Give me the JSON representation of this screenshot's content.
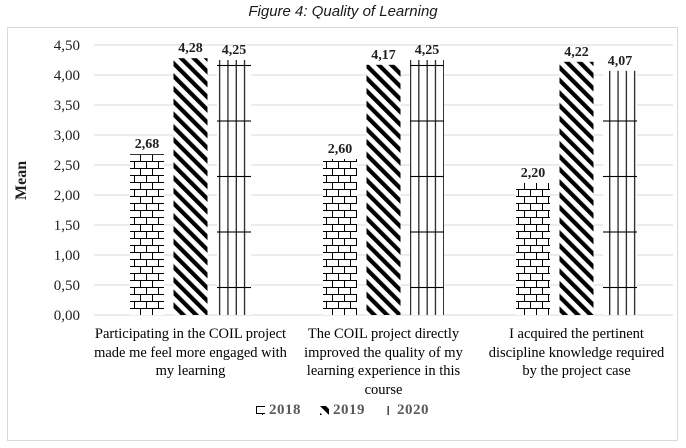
{
  "title": "Figure 4: Quality of Learning",
  "chart_data": {
    "type": "bar",
    "title": "Figure 4: Quality of Learning",
    "xlabel": "",
    "ylabel": "Mean",
    "ylim": [
      0,
      4.5
    ],
    "ytick_interval": 0.5,
    "decimal_separator": ",",
    "grid": true,
    "legend_position": "bottom",
    "categories": [
      "Participating in the COIL project made me feel more engaged with my learning",
      "The COIL project directly improved the quality of my learning experience in this course",
      "I acquired the pertinent discipline knowledge required by the project case"
    ],
    "series": [
      {
        "name": "2018",
        "pattern": "brick",
        "values": [
          2.68,
          2.6,
          2.2
        ],
        "value_labels": [
          "2,68",
          "2,60",
          "2,20"
        ]
      },
      {
        "name": "2019",
        "pattern": "wide-downward-diagonal",
        "values": [
          4.28,
          4.17,
          4.22
        ],
        "value_labels": [
          "4,28",
          "4,17",
          "4,22"
        ]
      },
      {
        "name": "2020",
        "pattern": "vertical-grid",
        "values": [
          4.25,
          4.25,
          4.07
        ],
        "value_labels": [
          "4,25",
          "4,25",
          "4,07"
        ]
      }
    ],
    "y_tick_labels": [
      "0,00",
      "0,50",
      "1,00",
      "1,50",
      "2,00",
      "2,50",
      "3,00",
      "3,50",
      "4,00",
      "4,50"
    ]
  },
  "colors": {
    "background": "#ffffff",
    "frame_border": "#d9d9d9",
    "gridline": "#d9d9d9",
    "bar_pattern": "#000000",
    "tick_label": "#1f1f1f",
    "data_label": "#1f1f1f",
    "category_label": "#000000",
    "legend_text": "#595959",
    "title_text": "#1a1a1a"
  }
}
